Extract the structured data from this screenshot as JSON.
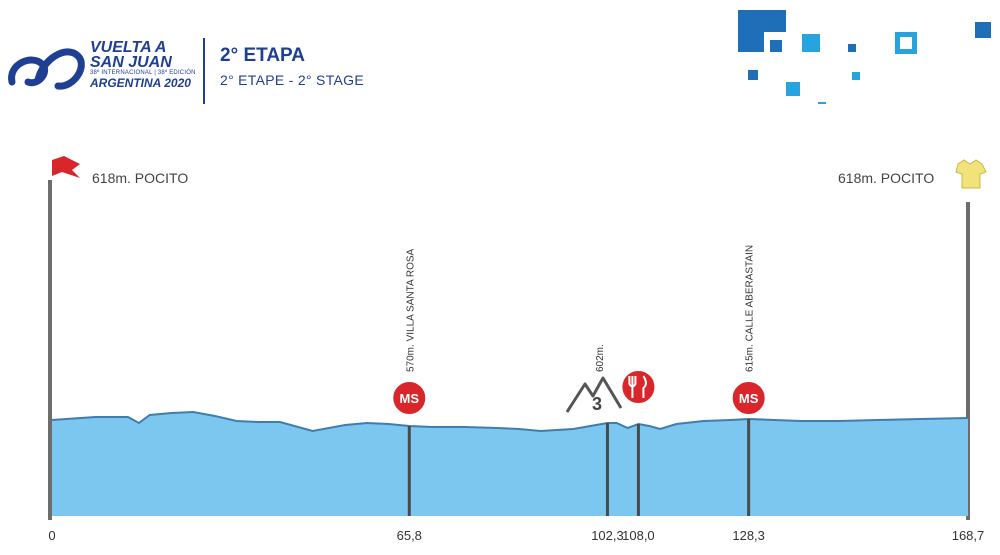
{
  "header": {
    "brand_line1": "VUELTA A",
    "brand_line2": "SAN JUAN",
    "brand_line3": "38º INTERNACIONAL | 38º EDICIÓN",
    "brand_line4": "ARGENTINA 2020",
    "stage_title": "2° ETAPA",
    "stage_subtitle": "2° ETAPE - 2° STAGE"
  },
  "colors": {
    "brand_blue": "#1f3f95",
    "profile_fill": "#7cc7f0",
    "profile_stroke": "#3f7daf",
    "marker_red": "#d9262a",
    "pole_gray": "#6d6d6d",
    "deco_blue": "#1e6fb8",
    "deco_light": "#29a3dd"
  },
  "start": {
    "label": "618m. POCITO",
    "icon": "red-flag-icon"
  },
  "finish": {
    "label": "618m. POCITO",
    "icon": "yellow-jersey-icon"
  },
  "chart_data": {
    "type": "area",
    "title": "",
    "xlabel": "",
    "ylabel": "",
    "x_unit": "km",
    "xlim": [
      0,
      168.7
    ],
    "tick_labels": [
      "0",
      "65,8",
      "102,3",
      "108,0",
      "128,3",
      "168,7"
    ],
    "ticks": [
      0,
      65.8,
      102.3,
      108.0,
      128.3,
      168.7
    ],
    "profile_x": [
      0,
      8,
      14,
      16,
      18,
      22,
      26,
      30,
      34,
      38,
      42,
      48,
      54,
      58,
      62,
      65.8,
      70,
      76,
      82,
      86,
      90,
      96,
      102.3,
      104,
      106,
      108,
      110,
      112,
      115,
      120,
      125,
      128.3,
      133,
      138,
      145,
      152,
      160,
      168.7
    ],
    "points": [
      {
        "km": 65.8,
        "type": "sprint",
        "badge": "MS",
        "label": "570m. VILLA SANTA ROSA"
      },
      {
        "km": 100.0,
        "type": "climb",
        "category": "3",
        "label": "602m."
      },
      {
        "km": 108.0,
        "type": "feed",
        "icon": "fork-knife-icon"
      },
      {
        "km": 128.3,
        "type": "sprint",
        "badge": "MS",
        "label": "615m. CALLE ABERASTAIN"
      }
    ]
  }
}
